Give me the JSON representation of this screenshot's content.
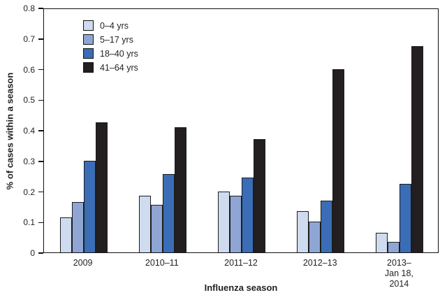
{
  "chart_data": {
    "type": "bar",
    "title": "",
    "xlabel": "Influenza season",
    "ylabel": "% of cases within a season",
    "ylim": [
      0,
      0.8
    ],
    "yticks": [
      0,
      0.1,
      0.2,
      0.3,
      0.4,
      0.5,
      0.6,
      0.7,
      0.8
    ],
    "ytick_labels": [
      "0",
      "0.1",
      "0.2",
      "0.3",
      "0.4",
      "0.5",
      "0.6",
      "0.7",
      "0.8"
    ],
    "grid": false,
    "legend_position": "top-left",
    "categories": [
      "2009",
      "2010–11",
      "2011–12",
      "2012–13",
      "2013–\nJan 18, 2014"
    ],
    "series": [
      {
        "name": "0–4 yrs",
        "color": "#cfdbee",
        "values": [
          0.115,
          0.185,
          0.2,
          0.135,
          0.065
        ]
      },
      {
        "name": "5–17 yrs",
        "color": "#8fa6d4",
        "values": [
          0.165,
          0.155,
          0.185,
          0.1,
          0.035
        ]
      },
      {
        "name": "18–40 yrs",
        "color": "#3a6db5",
        "values": [
          0.3,
          0.255,
          0.245,
          0.17,
          0.225
        ]
      },
      {
        "name": "41–64 yrs",
        "color": "#231f20",
        "values": [
          0.425,
          0.41,
          0.37,
          0.6,
          0.675
        ]
      }
    ]
  }
}
